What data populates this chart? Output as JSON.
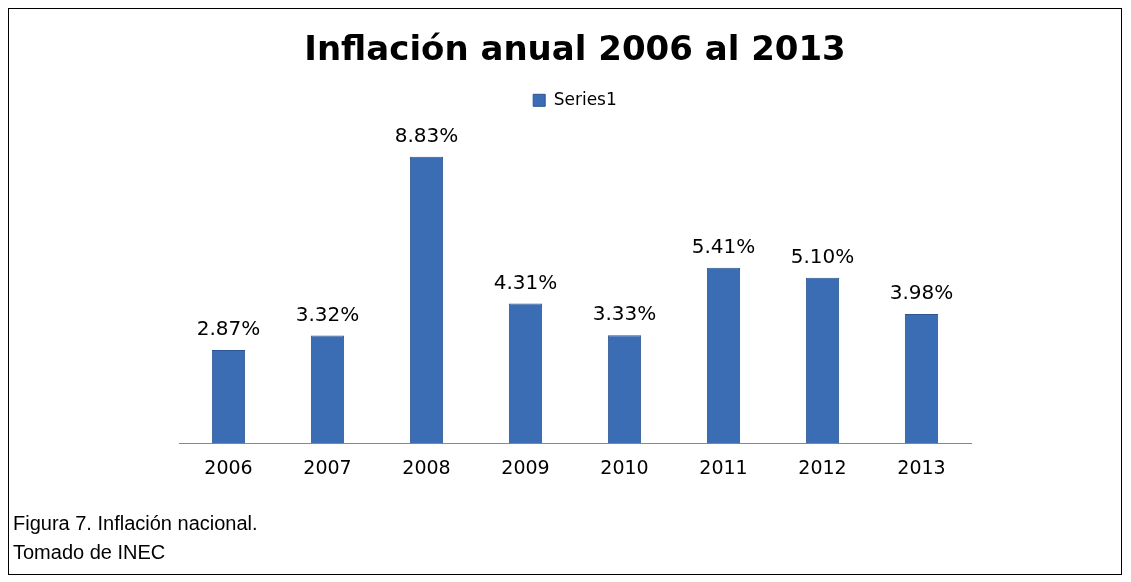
{
  "chart_data": {
    "type": "bar",
    "title": "Inflación anual 2006 al 2013",
    "categories": [
      "2006",
      "2007",
      "2008",
      "2009",
      "2010",
      "2011",
      "2012",
      "2013"
    ],
    "series": [
      {
        "name": "Series1",
        "color": "#3b6db4",
        "values": [
          2.87,
          3.32,
          8.83,
          4.31,
          3.33,
          5.41,
          5.1,
          3.98
        ],
        "value_labels": [
          "2.87%",
          "3.32%",
          "8.83%",
          "4.31%",
          "3.33%",
          "5.41%",
          "5.10%",
          "3.98%"
        ]
      }
    ],
    "legend": "top",
    "grid": false,
    "tick_labels": "x",
    "annotations": [
      "Figura 7.  Inflación nacional.",
      "Tomado de INEC"
    ]
  }
}
